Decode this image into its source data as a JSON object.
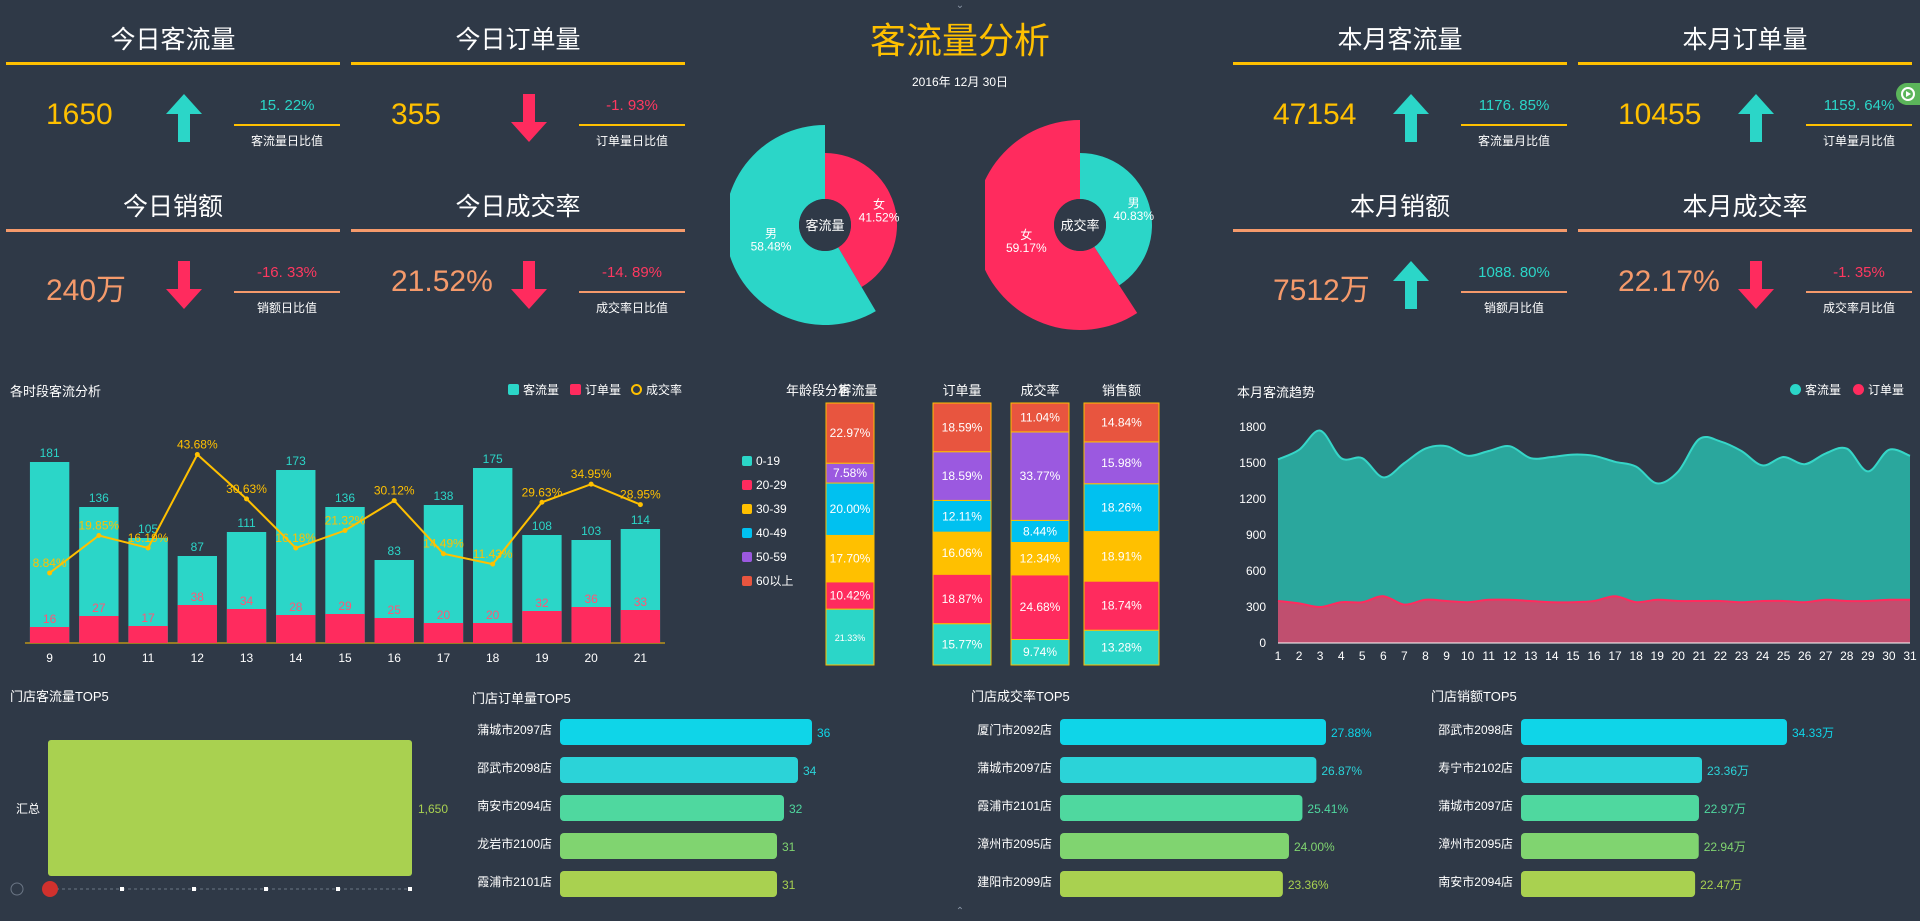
{
  "dashboard": {
    "title": "客流量分析",
    "date": "2016年 12月 30日"
  },
  "kpis": [
    {
      "title": "今日客流量",
      "value": "1650",
      "pct": "15. 22%",
      "sub": "客流量日比值",
      "dir": "up",
      "color": "#ffc000",
      "linecolor": "#ffc000",
      "pctcolor": "#2bd6c8"
    },
    {
      "title": "今日订单量",
      "value": "355",
      "pct": "-1. 93%",
      "sub": "订单量日比值",
      "dir": "down",
      "color": "#ffc000",
      "linecolor": "#ffc000",
      "pctcolor": "#ff3860"
    },
    {
      "title": "今日销额",
      "value": "240万",
      "pct": "-16. 33%",
      "sub": "销额日比值",
      "dir": "down",
      "color": "#f59a6b",
      "linecolor": "#f59a6b",
      "pctcolor": "#ff3860"
    },
    {
      "title": "今日成交率",
      "value": "21.52%",
      "pct": "-14. 89%",
      "sub": "成交率日比值",
      "dir": "down",
      "color": "#f59a6b",
      "linecolor": "#f59a6b",
      "pctcolor": "#ff3860"
    },
    {
      "title": "本月客流量",
      "value": "47154",
      "pct": "1176. 85%",
      "sub": "客流量月比值",
      "dir": "up",
      "color": "#ffc000",
      "linecolor": "#ffc000",
      "pctcolor": "#2bd6c8"
    },
    {
      "title": "本月订单量",
      "value": "10455",
      "pct": "1159. 64%",
      "sub": "订单量月比值",
      "dir": "up",
      "color": "#ffc000",
      "linecolor": "#ffc000",
      "pctcolor": "#2bd6c8"
    },
    {
      "title": "本月销额",
      "value": "7512万",
      "pct": "1088. 80%",
      "sub": "销额月比值",
      "dir": "up",
      "color": "#f59a6b",
      "linecolor": "#f59a6b",
      "pctcolor": "#2bd6c8"
    },
    {
      "title": "本月成交率",
      "value": "22.17%",
      "pct": "-1. 35%",
      "sub": "成交率月比值",
      "dir": "down",
      "color": "#f59a6b",
      "linecolor": "#f59a6b",
      "pctcolor": "#ff3860"
    }
  ],
  "colors": {
    "teal": "#2bd6c8",
    "pink": "#ff2b5e",
    "yellow": "#ffc000",
    "bg": "#2f3947"
  },
  "chart_data": [
    {
      "type": "pie",
      "center_label": "客流量",
      "slices": [
        {
          "name": "女",
          "value": 41.52,
          "label": "41.52%"
        },
        {
          "name": "男",
          "value": 58.48,
          "label": "58.48%"
        }
      ]
    },
    {
      "type": "pie",
      "center_label": "成交率",
      "slices": [
        {
          "name": "男",
          "value": 40.83,
          "label": "40.83%"
        },
        {
          "name": "女",
          "value": 59.17,
          "label": "59.17%"
        }
      ]
    },
    {
      "type": "bar",
      "title": "各时段客流分析",
      "categories": [
        "9",
        "10",
        "11",
        "12",
        "13",
        "14",
        "15",
        "16",
        "17",
        "18",
        "19",
        "20",
        "21"
      ],
      "series": [
        {
          "name": "客流量",
          "values": [
            181,
            136,
            105,
            87,
            111,
            173,
            136,
            83,
            138,
            175,
            108,
            103,
            114
          ]
        },
        {
          "name": "订单量",
          "values": [
            16,
            27,
            17,
            38,
            34,
            28,
            29,
            25,
            20,
            20,
            32,
            36,
            33
          ]
        },
        {
          "name": "成交率",
          "values": [
            8.84,
            19.85,
            16.19,
            43.68,
            30.63,
            16.18,
            21.32,
            30.12,
            14.49,
            11.43,
            29.63,
            34.95,
            28.95
          ],
          "labels": [
            "8.84%",
            "19.85%",
            "16.19%",
            "43.68%",
            "30.63%",
            "16.18%",
            "21.32%",
            "30.12%",
            "14.49%",
            "11.43%",
            "29.63%",
            "34.95%",
            "28.95%"
          ]
        }
      ]
    },
    {
      "type": "bar",
      "title": "年龄段分析",
      "stacked": true,
      "categories": [
        "客流量",
        "订单量",
        "成交率",
        "销售额"
      ],
      "groups": [
        "0-19",
        "20-29",
        "30-39",
        "40-49",
        "50-59",
        "60以上"
      ],
      "group_colors": [
        "#2bd6c8",
        "#ff2b5e",
        "#ffc000",
        "#00c1f0",
        "#9b59e0",
        "#e8553f"
      ],
      "values": [
        [
          21.33,
          10.42,
          17.7,
          20.0,
          7.58,
          22.97
        ],
        [
          15.77,
          18.87,
          16.06,
          12.11,
          18.59,
          18.59
        ],
        [
          9.74,
          24.68,
          12.34,
          8.44,
          33.77,
          11.04
        ],
        [
          13.28,
          18.74,
          18.91,
          18.26,
          15.98,
          14.84
        ]
      ],
      "labels": [
        [
          "21.33%",
          "10.42%",
          "17.70%",
          "20.00%",
          "7.58%",
          "22.97%"
        ],
        [
          "15.77%",
          "18.87%",
          "16.06%",
          "12.11%",
          "18.59%",
          "18.59%"
        ],
        [
          "9.74%",
          "24.68%",
          "12.34%",
          "8.44%",
          "33.77%",
          "11.04%"
        ],
        [
          "13.28%",
          "18.74%",
          "18.91%",
          "18.26%",
          "15.98%",
          "14.84%"
        ]
      ]
    },
    {
      "type": "area",
      "title": "本月客流趋势",
      "x": [
        "1",
        "2",
        "3",
        "4",
        "5",
        "6",
        "7",
        "8",
        "9",
        "10",
        "11",
        "12",
        "13",
        "14",
        "15",
        "16",
        "17",
        "18",
        "19",
        "20",
        "21",
        "22",
        "23",
        "24",
        "25",
        "26",
        "27",
        "28",
        "29",
        "30",
        "31"
      ],
      "ylim": [
        0,
        1800
      ],
      "yticks": [
        "0",
        "300",
        "600",
        "900",
        "1200",
        "1500",
        "1800"
      ],
      "series": [
        {
          "name": "客流量",
          "values": [
            1530,
            1610,
            1770,
            1540,
            1540,
            1380,
            1500,
            1620,
            1640,
            1560,
            1600,
            1640,
            1540,
            1550,
            1570,
            1560,
            1510,
            1470,
            1330,
            1430,
            1700,
            1680,
            1600,
            1480,
            1550,
            1490,
            1580,
            1620,
            1430,
            1610,
            1560
          ]
        },
        {
          "name": "订单量",
          "values": [
            350,
            330,
            300,
            340,
            340,
            390,
            320,
            360,
            350,
            340,
            360,
            360,
            350,
            340,
            340,
            350,
            390,
            340,
            360,
            350,
            350,
            350,
            340,
            350,
            350,
            340,
            360,
            350,
            350,
            360,
            360
          ]
        }
      ]
    },
    {
      "type": "bar",
      "title": "门店客流量TOP5",
      "categories": [
        "汇总"
      ],
      "values": [
        1650
      ],
      "value_labels": [
        "1,650"
      ]
    },
    {
      "type": "bar",
      "title": "门店订单量TOP5",
      "categories": [
        "蒲城市2097店",
        "邵武市2098店",
        "南安市2094店",
        "龙岩市2100店",
        "霞浦市2101店"
      ],
      "values": [
        36,
        34,
        32,
        31,
        31
      ],
      "value_labels": [
        "36",
        "34",
        "32",
        "31",
        "31"
      ]
    },
    {
      "type": "bar",
      "title": "门店成交率TOP5",
      "categories": [
        "厦门市2092店",
        "蒲城市2097店",
        "霞浦市2101店",
        "漳州市2095店",
        "建阳市2099店"
      ],
      "values": [
        27.88,
        26.87,
        25.41,
        24.0,
        23.36
      ],
      "value_labels": [
        "27.88%",
        "26.87%",
        "25.41%",
        "24.00%",
        "23.36%"
      ]
    },
    {
      "type": "bar",
      "title": "门店销额TOP5",
      "categories": [
        "邵武市2098店",
        "寿宁市2102店",
        "蒲城市2097店",
        "漳州市2095店",
        "南安市2094店"
      ],
      "values": [
        34.33,
        23.36,
        22.97,
        22.94,
        22.47
      ],
      "value_labels": [
        "34.33万",
        "23.36万",
        "22.97万",
        "22.94万",
        "22.47万"
      ]
    }
  ]
}
